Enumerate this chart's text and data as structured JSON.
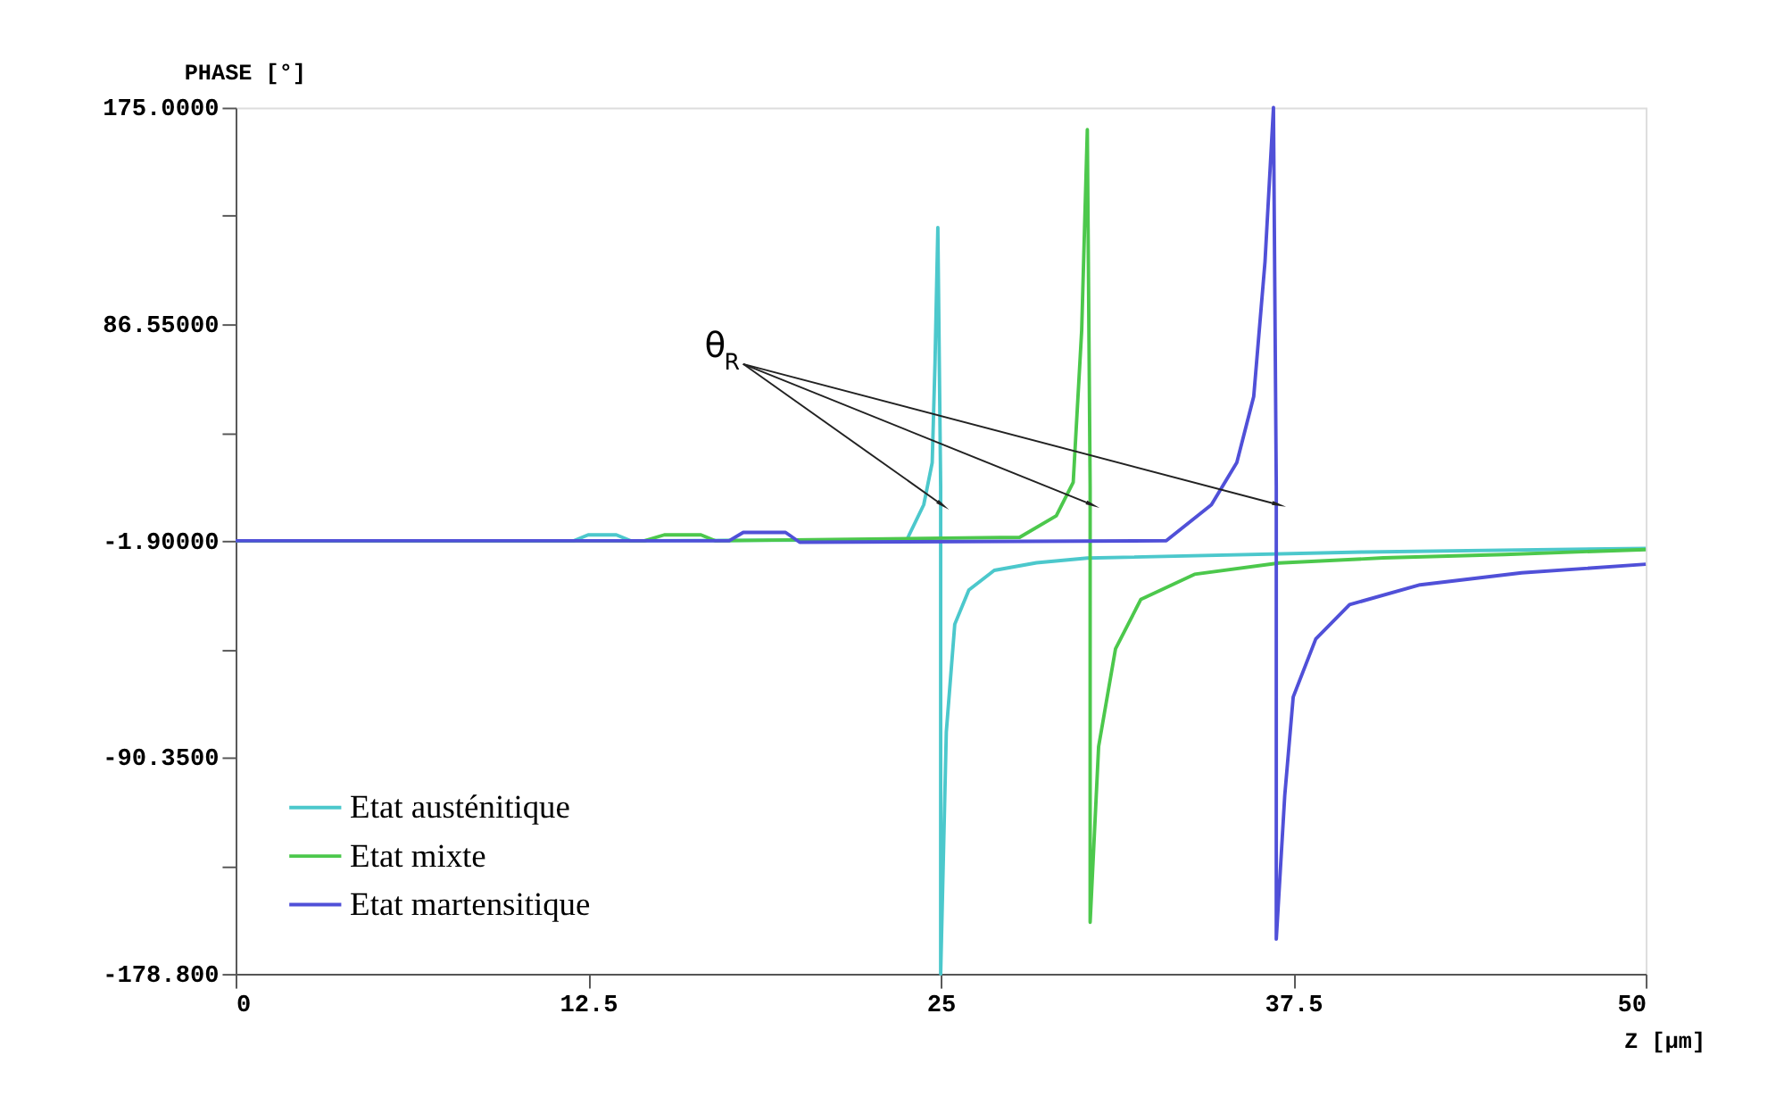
{
  "chart_data": {
    "type": "line",
    "ylabel": "PHASE [°]",
    "xlabel": "Z [µm]",
    "xlim": [
      0,
      50
    ],
    "xticks": [
      0,
      12.5,
      25,
      37.5,
      50
    ],
    "ylim": [
      -178.8,
      175
    ],
    "yticks": [
      {
        "value": 175,
        "label": "175.0000"
      },
      {
        "value": 130.775,
        "label": null
      },
      {
        "value": 86.55,
        "label": "86.55000"
      },
      {
        "value": 42.325,
        "label": null
      },
      {
        "value": -1.9,
        "label": "-1.90000"
      },
      {
        "value": -46.125,
        "label": null
      },
      {
        "value": -90.35,
        "label": "-90.3500"
      },
      {
        "value": -134.575,
        "label": null
      },
      {
        "value": -178.8,
        "label": "-178.800"
      }
    ],
    "grid": false,
    "legend": "bottom left",
    "marker": "none",
    "line_style": "solid",
    "annotations": [
      {
        "text": "θ$_{R}$",
        "x": 25,
        "y": 13
      }
    ],
    "series": [
      {
        "name": "Etat austénitique",
        "color": "#4cc8cc",
        "x": [
          0,
          12,
          12.5,
          13.5,
          14,
          23.8,
          24.4,
          24.7,
          24.8,
          24.9,
          25.0,
          25.0,
          25.2,
          25.5,
          26,
          26.9,
          28.4,
          30.2,
          40,
          50
        ],
        "values": [
          -1.9,
          -1.9,
          0.5,
          0.5,
          -1.9,
          -1.5,
          12.8,
          30,
          71,
          126,
          20,
          -178.8,
          -80,
          -36,
          -22,
          -14,
          -10.9,
          -9,
          -6.5,
          -5
        ]
      },
      {
        "name": "Etat mixte",
        "color": "#4cc84c",
        "x": [
          0,
          14.5,
          15.2,
          16.5,
          17,
          27.8,
          29.1,
          29.7,
          30.0,
          30.2,
          30.3,
          30.3,
          30.6,
          31.2,
          32.1,
          34,
          37,
          40.7,
          45,
          50
        ],
        "values": [
          -1.9,
          -1.9,
          0.5,
          0.5,
          -1.9,
          -0.5,
          8.3,
          22,
          84,
          166,
          20,
          -157.7,
          -86,
          -46,
          -25.8,
          -15.6,
          -11,
          -8.9,
          -7.5,
          -5.5
        ]
      },
      {
        "name": "Etat martensitique",
        "color": "#5050d8",
        "x": [
          0,
          17.5,
          18,
          19.5,
          20,
          33,
          34.6,
          35.5,
          36.1,
          36.5,
          36.8,
          36.9,
          36.9,
          37.2,
          37.5,
          38.3,
          39.5,
          42,
          45.6,
          50
        ],
        "values": [
          -1.9,
          -1.9,
          1.5,
          1.5,
          -2.5,
          -1.9,
          12.8,
          30,
          57,
          112,
          175,
          20,
          -164.6,
          -106,
          -65.7,
          -42,
          -28,
          -19.9,
          -15,
          -11.5
        ]
      }
    ]
  }
}
